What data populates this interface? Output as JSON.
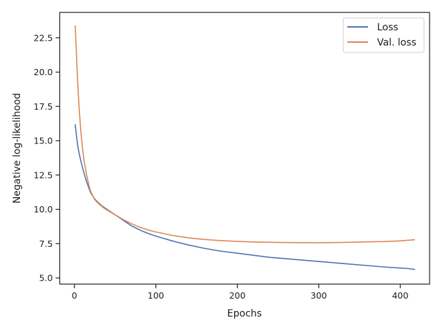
{
  "chart_data": {
    "type": "line",
    "title": "",
    "xlabel": "Epochs",
    "ylabel": "Negative log-likelihood",
    "xlim": [
      -18,
      436
    ],
    "ylim": [
      4.55,
      24.35
    ],
    "xticks": [
      0,
      100,
      200,
      300,
      400
    ],
    "yticks": [
      5.0,
      7.5,
      10.0,
      12.5,
      15.0,
      17.5,
      20.0,
      22.5
    ],
    "xtick_labels": [
      "0",
      "100",
      "200",
      "300",
      "400"
    ],
    "ytick_labels": [
      "5.0",
      "7.5",
      "10.0",
      "12.5",
      "15.0",
      "17.5",
      "20.0",
      "22.5"
    ],
    "grid": false,
    "legend_position": "top-right",
    "series": [
      {
        "name": "Loss",
        "color": "#4c72b0",
        "x": [
          1,
          3,
          5,
          8,
          11,
          15,
          20,
          25,
          30,
          35,
          40,
          50,
          60,
          70,
          80,
          90,
          100,
          120,
          140,
          160,
          180,
          200,
          220,
          240,
          260,
          280,
          300,
          320,
          340,
          360,
          380,
          400,
          410,
          418
        ],
        "y": [
          16.2,
          15.1,
          14.3,
          13.5,
          12.8,
          12.0,
          11.2,
          10.75,
          10.45,
          10.2,
          10.0,
          9.6,
          9.2,
          8.8,
          8.5,
          8.25,
          8.05,
          7.7,
          7.4,
          7.15,
          6.95,
          6.8,
          6.65,
          6.5,
          6.4,
          6.3,
          6.2,
          6.1,
          6.0,
          5.9,
          5.8,
          5.72,
          5.68,
          5.62
        ]
      },
      {
        "name": "Val. loss",
        "color": "#dd8452",
        "x": [
          1,
          2,
          3,
          4,
          5,
          6,
          8,
          10,
          12,
          15,
          18,
          20,
          25,
          30,
          35,
          40,
          50,
          60,
          70,
          80,
          90,
          100,
          120,
          140,
          160,
          180,
          200,
          220,
          240,
          260,
          280,
          300,
          320,
          340,
          360,
          380,
          400,
          410,
          418
        ],
        "y": [
          23.4,
          22.0,
          20.6,
          19.3,
          18.2,
          17.2,
          15.6,
          14.4,
          13.5,
          12.5,
          11.7,
          11.3,
          10.7,
          10.4,
          10.15,
          9.95,
          9.6,
          9.25,
          8.95,
          8.7,
          8.5,
          8.35,
          8.1,
          7.92,
          7.8,
          7.72,
          7.66,
          7.62,
          7.6,
          7.58,
          7.57,
          7.56,
          7.58,
          7.6,
          7.63,
          7.65,
          7.7,
          7.75,
          7.78
        ]
      }
    ]
  }
}
